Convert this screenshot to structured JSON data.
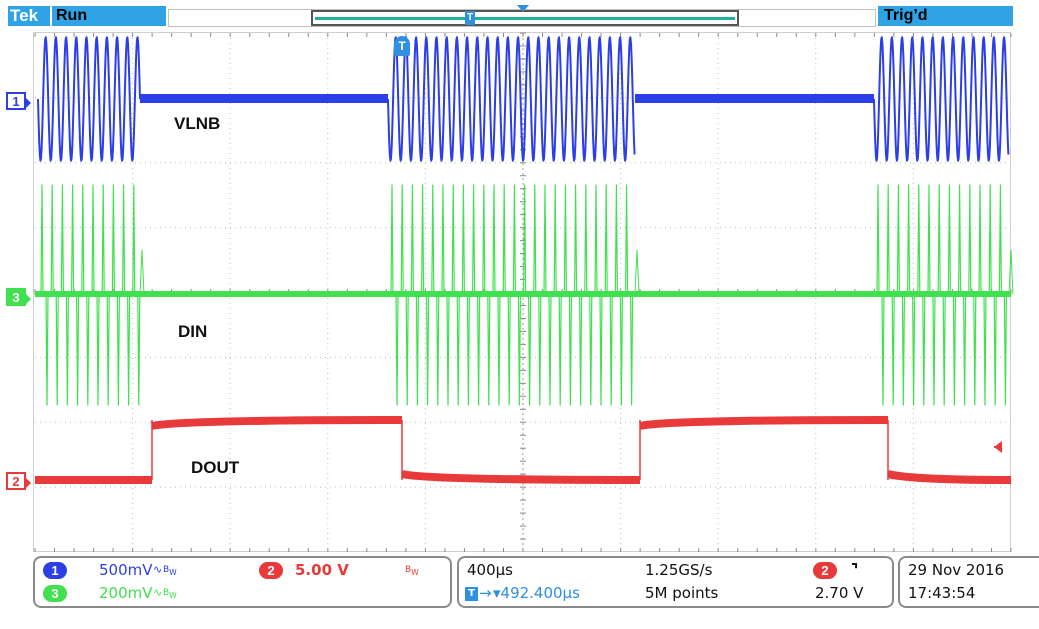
{
  "top_bar": {
    "brand": "Tek",
    "acquisition_status": "Run",
    "trigger_status": "Trig’d",
    "trigger_marker_glyph": "T",
    "record_view_indicator": "record-view-bracket"
  },
  "trace_labels": {
    "vlnb": "VLNB",
    "din": "DIN",
    "dout": "DOUT"
  },
  "channel_markers": {
    "ch1": "1",
    "ch2": "2",
    "ch3": "3"
  },
  "trigger_position_marker": "T",
  "channel_readout": {
    "ch1": {
      "number": "1",
      "scale": "500mV",
      "icons": [
        "ac-coupling-icon",
        "bw-limit-icon"
      ]
    },
    "ch2": {
      "number": "2",
      "scale": "5.00 V",
      "icons": [
        "bw-limit-icon"
      ]
    },
    "ch3": {
      "number": "3",
      "scale": "200mV",
      "icons": [
        "ac-coupling-icon",
        "bw-limit-icon"
      ]
    }
  },
  "timebase_readout": {
    "horizontal_scale": "400µs",
    "horizontal_position": "▾492.400µs",
    "sample_rate": "1.25GS/s",
    "record_length": "5M points",
    "trigger_source": "2",
    "trigger_slope_icon": "falling-edge-icon",
    "trigger_level": "2.70 V"
  },
  "date_time": {
    "date": "29 Nov 2016",
    "time": "17:43:54"
  },
  "colors": {
    "ch1": "#2c3fe6",
    "ch2": "#e83a3a",
    "ch3": "#40e050",
    "status_bar": "#2fa3e6",
    "grid": "#bdbdbd"
  }
}
